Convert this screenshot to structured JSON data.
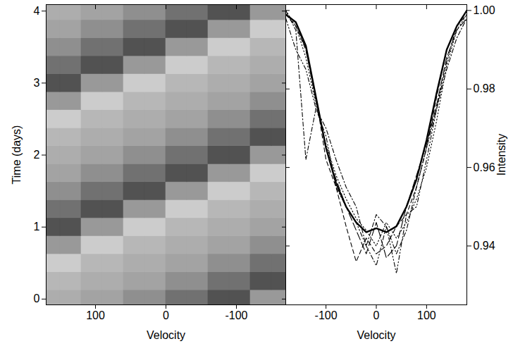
{
  "chart_data": [
    {
      "type": "heatmap",
      "xlabel": "Velocity",
      "ylabel": "Time (days)",
      "xlim": [
        170,
        -170
      ],
      "ylim": [
        -0.08,
        4.09
      ],
      "xticks": [
        100,
        0,
        -100
      ],
      "yticks": [
        0,
        1,
        2,
        3,
        4
      ],
      "x_edges": [
        180,
        150,
        120,
        90,
        60,
        30,
        0,
        -30,
        -60,
        -90,
        -120,
        -150,
        -180
      ],
      "y_edges": [
        -0.125,
        0.125,
        0.375,
        0.625,
        0.875,
        1.125,
        1.375,
        1.625,
        1.875,
        2.125,
        2.375,
        2.625,
        2.875,
        3.125,
        3.375,
        3.625,
        3.875,
        4.125
      ],
      "zlim": [
        0,
        1
      ],
      "cells": [
        [
          0.65,
          0.65,
          0.6,
          0.6,
          0.5,
          0.5,
          0.35,
          0.35,
          0.2,
          0.2,
          0.55,
          0.55
        ],
        [
          0.7,
          0.7,
          0.65,
          0.65,
          0.6,
          0.6,
          0.5,
          0.5,
          0.35,
          0.35,
          0.2,
          0.2
        ],
        [
          0.8,
          0.8,
          0.7,
          0.7,
          0.65,
          0.65,
          0.6,
          0.6,
          0.5,
          0.5,
          0.35,
          0.35
        ],
        [
          0.55,
          0.55,
          0.8,
          0.8,
          0.7,
          0.7,
          0.65,
          0.65,
          0.6,
          0.6,
          0.5,
          0.5
        ],
        [
          0.2,
          0.2,
          0.55,
          0.55,
          0.8,
          0.8,
          0.7,
          0.7,
          0.65,
          0.65,
          0.6,
          0.6
        ],
        [
          0.35,
          0.35,
          0.2,
          0.2,
          0.55,
          0.55,
          0.8,
          0.8,
          0.7,
          0.7,
          0.65,
          0.65
        ],
        [
          0.5,
          0.5,
          0.35,
          0.35,
          0.2,
          0.2,
          0.55,
          0.55,
          0.8,
          0.8,
          0.7,
          0.7
        ],
        [
          0.6,
          0.6,
          0.5,
          0.5,
          0.35,
          0.35,
          0.2,
          0.2,
          0.55,
          0.55,
          0.8,
          0.8
        ],
        [
          0.65,
          0.65,
          0.6,
          0.6,
          0.5,
          0.5,
          0.35,
          0.35,
          0.2,
          0.2,
          0.55,
          0.55
        ],
        [
          0.7,
          0.7,
          0.65,
          0.65,
          0.6,
          0.6,
          0.5,
          0.5,
          0.35,
          0.35,
          0.2,
          0.2
        ],
        [
          0.8,
          0.8,
          0.7,
          0.7,
          0.65,
          0.65,
          0.6,
          0.6,
          0.5,
          0.5,
          0.35,
          0.35
        ],
        [
          0.55,
          0.55,
          0.8,
          0.8,
          0.7,
          0.7,
          0.65,
          0.65,
          0.6,
          0.6,
          0.5,
          0.5
        ],
        [
          0.2,
          0.2,
          0.55,
          0.55,
          0.8,
          0.8,
          0.7,
          0.7,
          0.65,
          0.65,
          0.6,
          0.6
        ],
        [
          0.35,
          0.35,
          0.2,
          0.2,
          0.55,
          0.55,
          0.8,
          0.8,
          0.7,
          0.7,
          0.65,
          0.65
        ],
        [
          0.5,
          0.5,
          0.35,
          0.35,
          0.2,
          0.2,
          0.55,
          0.55,
          0.8,
          0.8,
          0.7,
          0.7
        ],
        [
          0.6,
          0.6,
          0.5,
          0.5,
          0.35,
          0.35,
          0.2,
          0.2,
          0.55,
          0.55,
          0.8,
          0.8
        ],
        [
          0.65,
          0.65,
          0.6,
          0.6,
          0.5,
          0.5,
          0.35,
          0.35,
          0.2,
          0.2,
          0.55,
          0.55
        ]
      ]
    },
    {
      "type": "line",
      "xlabel": "Velocity",
      "ylabel": "Intensity",
      "xlim": [
        -180,
        180
      ],
      "ylim": [
        0.925,
        1.0015
      ],
      "xticks": [
        -100,
        0,
        100
      ],
      "yticks": [
        0.94,
        0.96,
        0.98,
        {
          "value": 1,
          "label": "1.00"
        }
      ],
      "x": [
        -180,
        -160,
        -140,
        -120,
        -100,
        -80,
        -60,
        -40,
        -20,
        0,
        20,
        40,
        60,
        80,
        100,
        120,
        140,
        160,
        180
      ],
      "series": [
        {
          "color": "#000000",
          "line_style": "dashdot",
          "values": [
            1.0,
            0.995,
            0.962,
            0.975,
            0.97,
            0.962,
            0.955,
            0.95,
            0.94,
            0.948,
            0.945,
            0.938,
            0.944,
            0.955,
            0.965,
            0.975,
            0.985,
            0.993,
            0.998
          ]
        },
        {
          "color": "#000000",
          "line_style": "dashdotdot",
          "values": [
            0.998,
            0.99,
            0.985,
            0.975,
            0.968,
            0.955,
            0.95,
            0.946,
            0.94,
            0.935,
            0.945,
            0.933,
            0.948,
            0.95,
            0.962,
            0.975,
            0.987,
            0.996,
            1.0
          ]
        },
        {
          "color": "#000000",
          "line_style": "dashed",
          "values": [
            0.999,
            0.996,
            0.99,
            0.978,
            0.962,
            0.955,
            0.945,
            0.936,
            0.942,
            0.938,
            0.94,
            0.945,
            0.948,
            0.955,
            0.965,
            0.978,
            0.99,
            0.996,
            0.999
          ]
        },
        {
          "color": "#000000",
          "line_style": "longdash",
          "values": [
            0.999,
            0.997,
            0.99,
            0.977,
            0.965,
            0.957,
            0.95,
            0.944,
            0.938,
            0.946,
            0.937,
            0.94,
            0.95,
            0.958,
            0.966,
            0.976,
            0.988,
            0.995,
            0.998
          ]
        },
        {
          "color": "#000000",
          "line_style": "dotted",
          "values": [
            1.0,
            0.996,
            0.988,
            0.976,
            0.966,
            0.958,
            0.952,
            0.947,
            0.944,
            0.94,
            0.946,
            0.942,
            0.946,
            0.952,
            0.96,
            0.972,
            0.986,
            0.995,
            0.999
          ]
        },
        {
          "color": "#000000",
          "line_style": "solid",
          "values": [
            0.999,
            0.997,
            0.991,
            0.978,
            0.965,
            0.956,
            0.95,
            0.946,
            0.9435,
            0.9445,
            0.9435,
            0.945,
            0.95,
            0.957,
            0.967,
            0.979,
            0.99,
            0.996,
            1.0
          ]
        }
      ]
    }
  ]
}
